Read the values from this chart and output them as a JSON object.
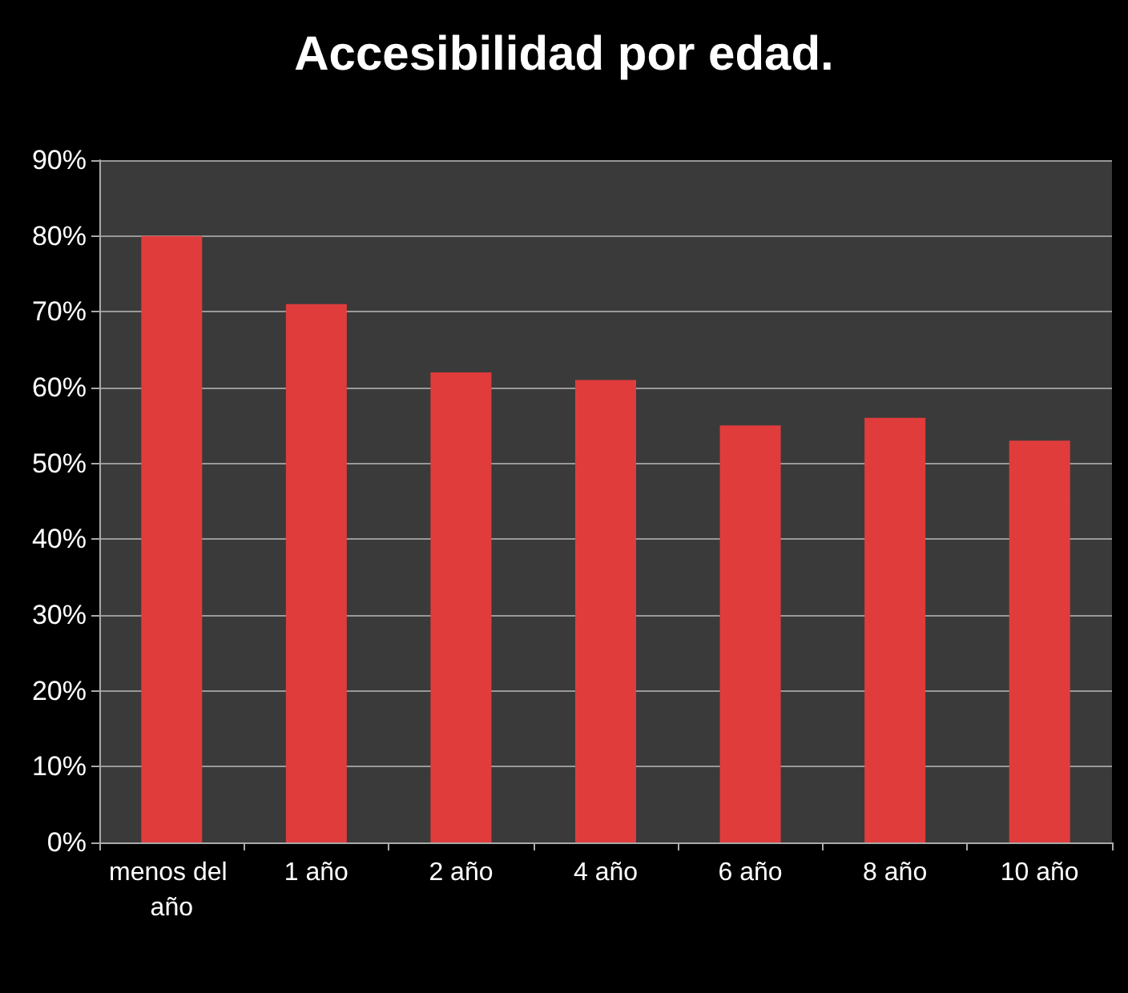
{
  "chart_data": {
    "type": "bar",
    "title": "Accesibilidad por edad.",
    "categories": [
      "menos del año",
      "1 año",
      "2 año",
      "4 año",
      "6 año",
      "8 año",
      "10 año"
    ],
    "values": [
      80,
      71,
      62,
      61,
      55,
      56,
      53
    ],
    "color": "#e03c3c",
    "ylim": [
      0,
      90
    ],
    "yticks": [
      {
        "value": 0,
        "label": "0%"
      },
      {
        "value": 10,
        "label": "10%"
      },
      {
        "value": 20,
        "label": "20%"
      },
      {
        "value": 30,
        "label": "30%"
      },
      {
        "value": 40,
        "label": "40%"
      },
      {
        "value": 50,
        "label": "50%"
      },
      {
        "value": 60,
        "label": "60%"
      },
      {
        "value": 70,
        "label": "70%"
      },
      {
        "value": 80,
        "label": "80%"
      },
      {
        "value": 90,
        "label": "90%"
      }
    ],
    "grid": true
  }
}
